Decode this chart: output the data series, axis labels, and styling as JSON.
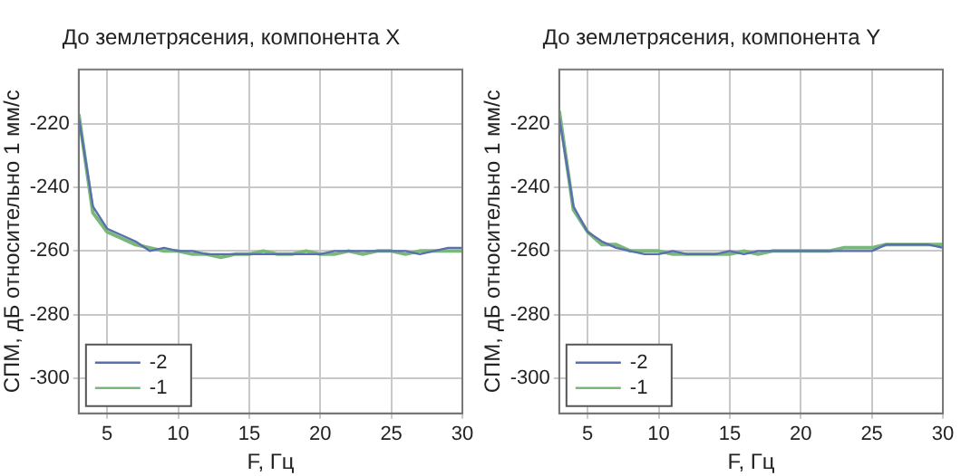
{
  "chart_data": [
    {
      "type": "line",
      "title": "До землетрясения, компонента X",
      "xlabel": "F, Гц",
      "ylabel": "СПМ, дБ относительно 1 мм/с",
      "x": [
        3,
        4,
        5,
        6,
        7,
        8,
        9,
        10,
        11,
        12,
        13,
        14,
        15,
        16,
        17,
        18,
        19,
        20,
        21,
        22,
        23,
        24,
        25,
        26,
        27,
        28,
        29,
        30
      ],
      "series": [
        {
          "name": "-2",
          "color": "#5a6fb0",
          "values": [
            -218,
            -246,
            -253,
            -255,
            -257,
            -260,
            -259,
            -260,
            -260,
            -261,
            -261,
            -261,
            -261,
            -261,
            -261,
            -261,
            -261,
            -261,
            -260,
            -260,
            -260,
            -260,
            -260,
            -260,
            -261,
            -260,
            -259,
            -259
          ]
        },
        {
          "name": "-1",
          "color": "#7ab87a",
          "values": [
            -217,
            -248,
            -254,
            -256,
            -258,
            -259,
            -260,
            -260,
            -261,
            -261,
            -262,
            -261,
            -261,
            -260,
            -261,
            -261,
            -260,
            -261,
            -261,
            -260,
            -261,
            -260,
            -260,
            -261,
            -260,
            -260,
            -260,
            -260
          ]
        }
      ],
      "xlim": [
        3,
        30
      ],
      "xticks": [
        5,
        10,
        15,
        20,
        25,
        30
      ],
      "ylim": [
        -311,
        -203
      ],
      "yticks": [
        -300,
        -280,
        -260,
        -240,
        -220
      ],
      "grid": true,
      "legend": "bottom left",
      "marker": "none",
      "line_style": "solid"
    },
    {
      "type": "line",
      "title": "До землетрясения, компонента Y",
      "xlabel": "F, Гц",
      "ylabel": "СПМ, дБ относительно 1 мм/с",
      "x": [
        3,
        4,
        5,
        6,
        7,
        8,
        9,
        10,
        11,
        12,
        13,
        14,
        15,
        16,
        17,
        18,
        19,
        20,
        21,
        22,
        23,
        24,
        25,
        26,
        27,
        28,
        29,
        30
      ],
      "series": [
        {
          "name": "-2",
          "color": "#5a6fb0",
          "values": [
            -218,
            -246,
            -254,
            -257,
            -259,
            -260,
            -261,
            -261,
            -260,
            -261,
            -261,
            -261,
            -260,
            -261,
            -260,
            -260,
            -260,
            -260,
            -260,
            -260,
            -260,
            -260,
            -260,
            -258,
            -258,
            -258,
            -258,
            -259
          ]
        },
        {
          "name": "-1",
          "color": "#7ab87a",
          "values": [
            -216,
            -247,
            -254,
            -258,
            -258,
            -260,
            -260,
            -260,
            -261,
            -261,
            -261,
            -261,
            -261,
            -260,
            -261,
            -260,
            -260,
            -260,
            -260,
            -260,
            -259,
            -259,
            -259,
            -258,
            -258,
            -258,
            -258,
            -258
          ]
        }
      ],
      "xlim": [
        3,
        30
      ],
      "xticks": [
        5,
        10,
        15,
        20,
        25,
        30
      ],
      "ylim": [
        -311,
        -203
      ],
      "yticks": [
        -300,
        -280,
        -260,
        -240,
        -220
      ],
      "grid": true,
      "legend": "bottom left",
      "marker": "none",
      "line_style": "solid"
    }
  ]
}
